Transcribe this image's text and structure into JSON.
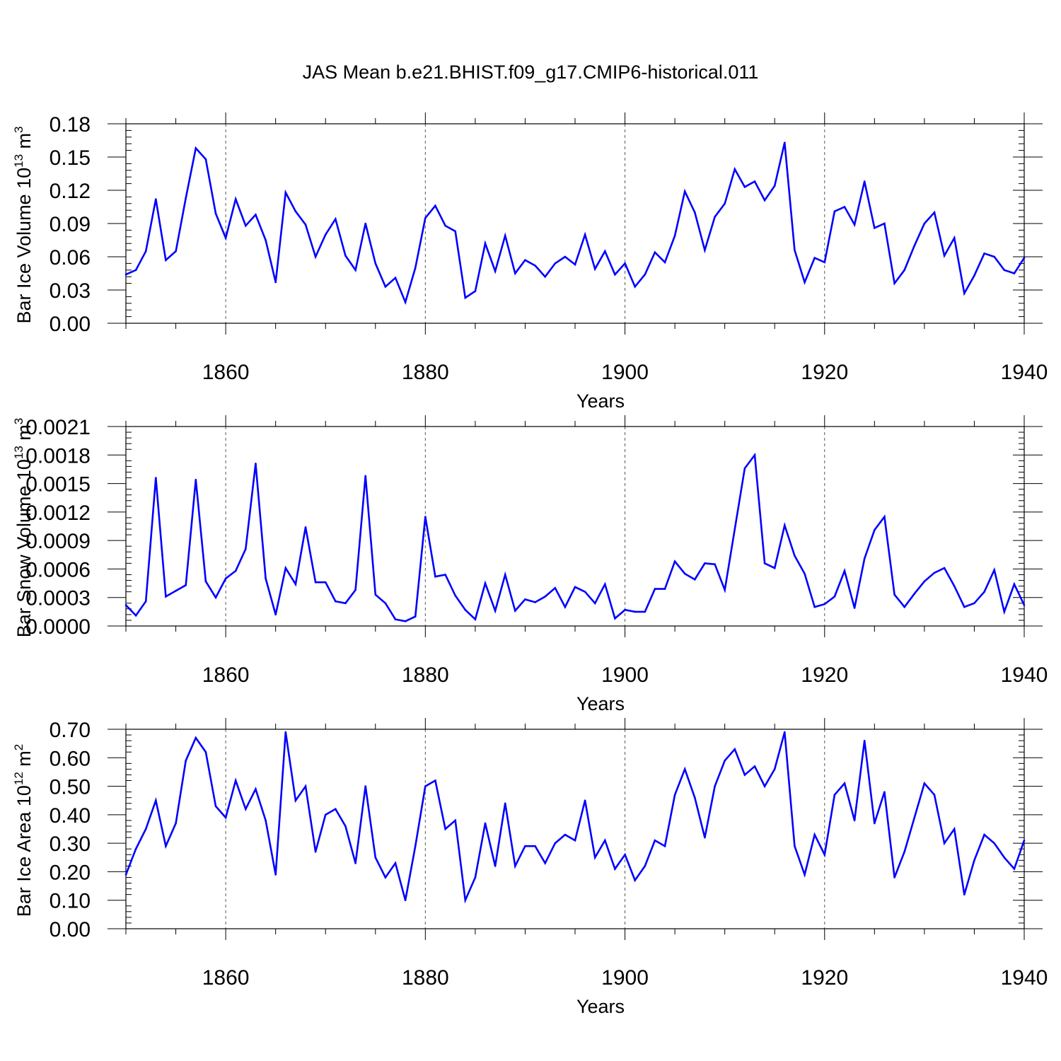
{
  "chart_data": [
    {
      "type": "line",
      "title": "JAS Mean b.e21.BHIST.f09_g17.CMIP6-historical.011",
      "xlabel": "Years",
      "ylabel": "Bar Ice Volume 10",
      "ylabel_exponent": "13",
      "ylabel_unit": "m",
      "ylabel_unit_exponent": "3",
      "xlim": [
        1850,
        1940
      ],
      "ylim": [
        0,
        0.18
      ],
      "yticks": [
        "0.00",
        "0.03",
        "0.06",
        "0.09",
        "0.12",
        "0.15",
        "0.18"
      ],
      "ytick_values": [
        0,
        0.03,
        0.06,
        0.09,
        0.12,
        0.15,
        0.18
      ],
      "xticks": [
        "1860",
        "1880",
        "1900",
        "1920",
        "1940"
      ],
      "xtick_values": [
        1860,
        1880,
        1900,
        1920,
        1940
      ],
      "grid": "dashed vertical at major x ticks",
      "series": [
        {
          "name": "ice volume",
          "color": "#0000ff",
          "x": [
            1850,
            1851,
            1852,
            1853,
            1854,
            1855,
            1856,
            1857,
            1858,
            1859,
            1860,
            1861,
            1862,
            1863,
            1864,
            1865,
            1866,
            1867,
            1868,
            1869,
            1870,
            1871,
            1872,
            1873,
            1874,
            1875,
            1876,
            1877,
            1878,
            1879,
            1880,
            1881,
            1882,
            1883,
            1884,
            1885,
            1886,
            1887,
            1888,
            1889,
            1890,
            1891,
            1892,
            1893,
            1894,
            1895,
            1896,
            1897,
            1898,
            1899,
            1900,
            1901,
            1902,
            1903,
            1904,
            1905,
            1906,
            1907,
            1908,
            1909,
            1910,
            1911,
            1912,
            1913,
            1914,
            1915,
            1916,
            1917,
            1918,
            1919,
            1920,
            1921,
            1922,
            1923,
            1924,
            1925,
            1926,
            1927,
            1928,
            1929,
            1930,
            1931,
            1932,
            1933,
            1934,
            1935,
            1936,
            1937,
            1938,
            1939,
            1940
          ],
          "values": [
            0.044,
            0.048,
            0.065,
            0.112,
            0.057,
            0.065,
            0.113,
            0.158,
            0.148,
            0.099,
            0.077,
            0.112,
            0.088,
            0.098,
            0.075,
            0.037,
            0.118,
            0.101,
            0.089,
            0.06,
            0.08,
            0.094,
            0.061,
            0.048,
            0.09,
            0.054,
            0.033,
            0.041,
            0.019,
            0.05,
            0.095,
            0.106,
            0.088,
            0.083,
            0.023,
            0.029,
            0.072,
            0.047,
            0.079,
            0.045,
            0.057,
            0.052,
            0.042,
            0.054,
            0.06,
            0.053,
            0.08,
            0.049,
            0.065,
            0.044,
            0.054,
            0.033,
            0.044,
            0.064,
            0.055,
            0.079,
            0.119,
            0.1,
            0.066,
            0.096,
            0.108,
            0.139,
            0.123,
            0.128,
            0.111,
            0.124,
            0.163,
            0.066,
            0.037,
            0.059,
            0.055,
            0.101,
            0.105,
            0.089,
            0.128,
            0.086,
            0.09,
            0.036,
            0.048,
            0.07,
            0.09,
            0.1,
            0.061,
            0.077,
            0.027,
            0.043,
            0.063,
            0.06,
            0.048,
            0.045,
            0.059
          ]
        }
      ]
    },
    {
      "type": "line",
      "xlabel": "Years",
      "ylabel": "Bar Snow Volume 10",
      "ylabel_exponent": "13",
      "ylabel_unit": "m",
      "ylabel_unit_exponent": "3",
      "xlim": [
        1850,
        1940
      ],
      "ylim": [
        0,
        0.0021
      ],
      "yticks": [
        "0.0000",
        "0.0003",
        "0.0006",
        "0.0009",
        "0.0012",
        "0.0015",
        "0.0018",
        "0.0021"
      ],
      "ytick_values": [
        0,
        0.0003,
        0.0006,
        0.0009,
        0.0012,
        0.0015,
        0.0018,
        0.0021
      ],
      "xticks": [
        "1860",
        "1880",
        "1900",
        "1920",
        "1940"
      ],
      "xtick_values": [
        1860,
        1880,
        1900,
        1920,
        1940
      ],
      "grid": "dashed vertical at major x ticks",
      "series": [
        {
          "name": "snow volume",
          "color": "#0000ff",
          "x": [
            1850,
            1851,
            1852,
            1853,
            1854,
            1855,
            1856,
            1857,
            1858,
            1859,
            1860,
            1861,
            1862,
            1863,
            1864,
            1865,
            1866,
            1867,
            1868,
            1869,
            1870,
            1871,
            1872,
            1873,
            1874,
            1875,
            1876,
            1877,
            1878,
            1879,
            1880,
            1881,
            1882,
            1883,
            1884,
            1885,
            1886,
            1887,
            1888,
            1889,
            1890,
            1891,
            1892,
            1893,
            1894,
            1895,
            1896,
            1897,
            1898,
            1899,
            1900,
            1901,
            1902,
            1903,
            1904,
            1905,
            1906,
            1907,
            1908,
            1909,
            1910,
            1911,
            1912,
            1913,
            1914,
            1915,
            1916,
            1917,
            1918,
            1919,
            1920,
            1921,
            1922,
            1923,
            1924,
            1925,
            1926,
            1927,
            1928,
            1929,
            1930,
            1931,
            1932,
            1933,
            1934,
            1935,
            1936,
            1937,
            1938,
            1939,
            1940
          ],
          "values": [
            0.00022,
            0.00011,
            0.00026,
            0.00156,
            0.00031,
            0.00037,
            0.00043,
            0.00154,
            0.00047,
            0.0003,
            0.0005,
            0.00058,
            0.00081,
            0.00171,
            0.0005,
            0.00012,
            0.00061,
            0.00044,
            0.00104,
            0.00046,
            0.00046,
            0.00026,
            0.00024,
            0.00038,
            0.00158,
            0.00033,
            0.00024,
            7e-05,
            5e-05,
            0.0001,
            0.00115,
            0.00052,
            0.00054,
            0.00032,
            0.00017,
            7e-05,
            0.00045,
            0.00016,
            0.00054,
            0.00016,
            0.00028,
            0.00025,
            0.00031,
            0.0004,
            0.0002,
            0.00041,
            0.00036,
            0.00024,
            0.00044,
            8e-05,
            0.00017,
            0.00015,
            0.00015,
            0.00039,
            0.00039,
            0.00068,
            0.00055,
            0.00049,
            0.00066,
            0.00065,
            0.00038,
            0.00102,
            0.00166,
            0.0018,
            0.00066,
            0.00061,
            0.00106,
            0.00074,
            0.00055,
            0.0002,
            0.00023,
            0.00031,
            0.00058,
            0.00019,
            0.00071,
            0.00101,
            0.00115,
            0.00033,
            0.0002,
            0.00034,
            0.00047,
            0.00056,
            0.00061,
            0.00042,
            0.0002,
            0.00024,
            0.00036,
            0.00059,
            0.00015,
            0.00044,
            0.00022
          ]
        }
      ]
    },
    {
      "type": "line",
      "xlabel": "Years",
      "ylabel": "Bar Ice Area 10",
      "ylabel_exponent": "12",
      "ylabel_unit": "m",
      "ylabel_unit_exponent": "2",
      "xlim": [
        1850,
        1940
      ],
      "ylim": [
        0,
        0.7
      ],
      "yticks": [
        "0.00",
        "0.10",
        "0.20",
        "0.30",
        "0.40",
        "0.50",
        "0.60",
        "0.70"
      ],
      "ytick_values": [
        0,
        0.1,
        0.2,
        0.3,
        0.4,
        0.5,
        0.6,
        0.7
      ],
      "xticks": [
        "1860",
        "1880",
        "1900",
        "1920",
        "1940"
      ],
      "xtick_values": [
        1860,
        1880,
        1900,
        1920,
        1940
      ],
      "grid": "dashed vertical at major x ticks",
      "series": [
        {
          "name": "ice area",
          "color": "#0000ff",
          "x": [
            1850,
            1851,
            1852,
            1853,
            1854,
            1855,
            1856,
            1857,
            1858,
            1859,
            1860,
            1861,
            1862,
            1863,
            1864,
            1865,
            1866,
            1867,
            1868,
            1869,
            1870,
            1871,
            1872,
            1873,
            1874,
            1875,
            1876,
            1877,
            1878,
            1879,
            1880,
            1881,
            1882,
            1883,
            1884,
            1885,
            1886,
            1887,
            1888,
            1889,
            1890,
            1891,
            1892,
            1893,
            1894,
            1895,
            1896,
            1897,
            1898,
            1899,
            1900,
            1901,
            1902,
            1903,
            1904,
            1905,
            1906,
            1907,
            1908,
            1909,
            1910,
            1911,
            1912,
            1913,
            1914,
            1915,
            1916,
            1917,
            1918,
            1919,
            1920,
            1921,
            1922,
            1923,
            1924,
            1925,
            1926,
            1927,
            1928,
            1929,
            1930,
            1931,
            1932,
            1933,
            1934,
            1935,
            1936,
            1937,
            1938,
            1939,
            1940
          ],
          "values": [
            0.19,
            0.28,
            0.35,
            0.45,
            0.29,
            0.37,
            0.59,
            0.67,
            0.62,
            0.43,
            0.39,
            0.52,
            0.42,
            0.49,
            0.38,
            0.19,
            0.69,
            0.45,
            0.5,
            0.27,
            0.4,
            0.42,
            0.36,
            0.23,
            0.5,
            0.25,
            0.18,
            0.23,
            0.1,
            0.29,
            0.5,
            0.52,
            0.35,
            0.38,
            0.1,
            0.18,
            0.37,
            0.22,
            0.44,
            0.22,
            0.29,
            0.29,
            0.23,
            0.3,
            0.33,
            0.31,
            0.45,
            0.25,
            0.31,
            0.21,
            0.26,
            0.17,
            0.22,
            0.31,
            0.29,
            0.47,
            0.56,
            0.46,
            0.32,
            0.5,
            0.59,
            0.63,
            0.54,
            0.57,
            0.5,
            0.56,
            0.69,
            0.29,
            0.19,
            0.33,
            0.26,
            0.47,
            0.51,
            0.38,
            0.66,
            0.37,
            0.48,
            0.18,
            0.27,
            0.39,
            0.51,
            0.47,
            0.3,
            0.35,
            0.12,
            0.24,
            0.33,
            0.3,
            0.25,
            0.21,
            0.31
          ]
        }
      ]
    }
  ]
}
